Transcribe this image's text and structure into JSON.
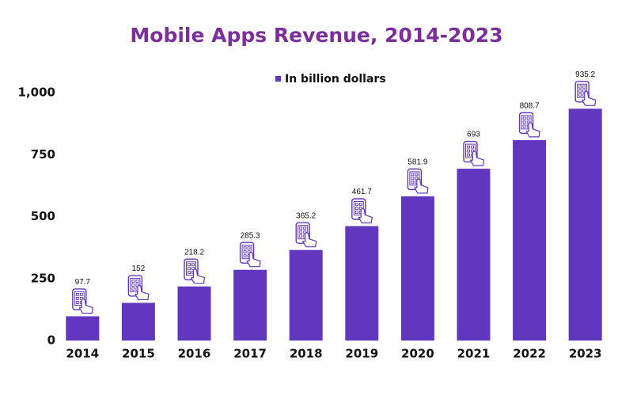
{
  "chart_data": {
    "type": "bar",
    "title": "Mobile Apps Revenue, 2014-2023",
    "categories": [
      "2014",
      "2015",
      "2016",
      "2017",
      "2018",
      "2019",
      "2020",
      "2021",
      "2022",
      "2023"
    ],
    "series": [
      {
        "name": "In billion dollars",
        "color": "#6237c0",
        "values": [
          97.7,
          152,
          218.2,
          285.3,
          365.2,
          461.7,
          581.9,
          693,
          808.7,
          935.2
        ]
      }
    ],
    "ylim": [
      0,
      1000
    ],
    "yticks": [
      0,
      250,
      500,
      750,
      {
        "value": 1000,
        "label": "1,000"
      }
    ],
    "grid": false
  }
}
